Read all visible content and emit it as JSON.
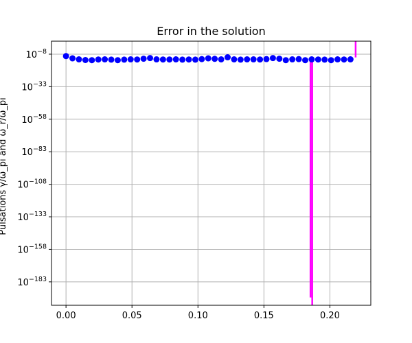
{
  "chart_data": {
    "type": "scatter",
    "title": "Error in the solution",
    "ylabel": "Pulsations  γ/ω_pi and ω_r/ω_pi",
    "y_scale": "log",
    "grid": true,
    "xlim": [
      -0.011,
      0.231
    ],
    "ylim_exponent": [
      -201,
      2
    ],
    "x_ticks": [
      0.0,
      0.05,
      0.1,
      0.15,
      0.2
    ],
    "x_tick_labels": [
      "0.00",
      "0.05",
      "0.10",
      "0.15",
      "0.20"
    ],
    "y_tick_exponents": [
      -8,
      -33,
      -58,
      -83,
      -108,
      -133,
      -158,
      -183
    ],
    "y_tick_labels": [
      "10^-8",
      "10^-33",
      "10^-58",
      "10^-83",
      "10^-108",
      "10^-133",
      "10^-158",
      "10^-183"
    ],
    "series": [
      {
        "marker": "o",
        "color": "#0000ff",
        "x": [
          0.0,
          0.0049,
          0.0098,
          0.0147,
          0.0196,
          0.0245,
          0.0294,
          0.0343,
          0.0392,
          0.0441,
          0.049,
          0.0539,
          0.0588,
          0.0637,
          0.0686,
          0.0735,
          0.0784,
          0.0833,
          0.0882,
          0.0931,
          0.098,
          0.1029,
          0.1078,
          0.1127,
          0.1176,
          0.1225,
          0.1274,
          0.1323,
          0.1372,
          0.1421,
          0.147,
          0.1519,
          0.1568,
          0.1617,
          0.1666,
          0.1715,
          0.1764,
          0.1813,
          0.1862,
          0.1911,
          0.196,
          0.2009,
          0.2058,
          0.2107,
          0.2156
        ],
        "y_exponent": [
          -9.5,
          -11.2,
          -12.0,
          -12.5,
          -12.6,
          -12.1,
          -12.0,
          -12.2,
          -12.6,
          -12.2,
          -12.0,
          -12.1,
          -11.5,
          -11.0,
          -12.0,
          -12.1,
          -12.1,
          -12.0,
          -12.2,
          -12.1,
          -12.2,
          -11.8,
          -11.2,
          -11.6,
          -12.0,
          -10.4,
          -12.0,
          -12.2,
          -12.0,
          -12.0,
          -12.1,
          -11.8,
          -11.0,
          -11.5,
          -12.6,
          -12.0,
          -11.8,
          -12.6,
          -12.0,
          -12.1,
          -12.2,
          -12.6,
          -12.0,
          -12.1,
          -12.0
        ]
      },
      {
        "marker": "line",
        "color": "#ff00ff",
        "points": [
          {
            "x": 0.1853,
            "y_exponent": -11.0
          },
          {
            "x": 0.1853,
            "y_exponent": -195.0
          },
          {
            "x": 0.1866,
            "y_exponent": -12.0
          },
          {
            "x": 0.1866,
            "y_exponent": -201.0
          },
          {
            "x": 0.2195,
            "y_exponent": -10.5
          },
          {
            "x": 0.2195,
            "y_exponent": 2.0
          }
        ]
      }
    ]
  }
}
